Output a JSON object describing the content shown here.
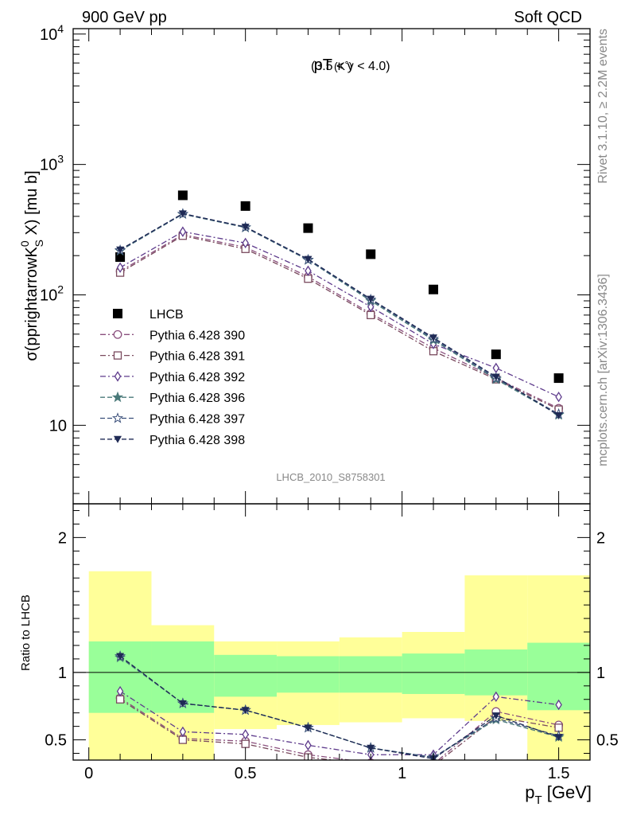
{
  "header": {
    "left": "900 GeV pp",
    "right": "Soft QCD",
    "side_top": "Rivet 3.1.10, ≥ 2.2M events",
    "side_bottom": "mcplots.cern.ch [arXiv:1306.3436]"
  },
  "chart_data": [
    {
      "type": "line",
      "panel": "main",
      "title_main": "pT",
      "title_particle": "(K˚)",
      "title_range": "(3.5 < y < 4.0)",
      "ylabel": "σ(pprightarrowK",
      "ylabel_sup": "0",
      "ylabel_sub": "S",
      "ylabel_tail": " X) [mu b]",
      "watermark": "LHCB_2010_S8758301",
      "yscale": "log",
      "ylim": [
        2.5,
        11000
      ],
      "xlim": [
        -0.05,
        1.6
      ],
      "x": [
        0.1,
        0.3,
        0.5,
        0.7,
        0.9,
        1.1,
        1.3,
        1.5
      ],
      "ytick_labels": [
        {
          "value": 10,
          "base": "10",
          "exp": ""
        },
        {
          "value": 100,
          "base": "10",
          "exp": "2"
        },
        {
          "value": 1000,
          "base": "10",
          "exp": "3"
        },
        {
          "value": 10000,
          "base": "10",
          "exp": "4"
        }
      ],
      "series": [
        {
          "name": "LHCB",
          "marker": "square",
          "color": "#000000",
          "values": [
            195,
            580,
            480,
            325,
            205,
            110,
            35,
            23
          ]
        },
        {
          "name": "Pythia 6.428 390",
          "marker": "circle",
          "color": "#8a4f7d",
          "line": "dashdot",
          "values": [
            152,
            290,
            232,
            138,
            72,
            39,
            23,
            13.5
          ]
        },
        {
          "name": "Pythia 6.428 391",
          "marker": "square-open",
          "color": "#7a4a5e",
          "line": "dashdot",
          "values": [
            148,
            284,
            225,
            133,
            70,
            37,
            22.5,
            13.2
          ]
        },
        {
          "name": "Pythia 6.428 392",
          "marker": "diamond",
          "color": "#5e3b8c",
          "line": "dashdot",
          "values": [
            162,
            305,
            250,
            153,
            81,
            42,
            27.5,
            16.5
          ]
        },
        {
          "name": "Pythia 6.428 396",
          "marker": "star",
          "color": "#4a7a7a",
          "line": "dashed",
          "values": [
            218,
            416,
            328,
            185,
            90,
            45,
            22.5,
            12.0
          ]
        },
        {
          "name": "Pythia 6.428 397",
          "marker": "star-open",
          "color": "#3a4f7a",
          "line": "dashed",
          "values": [
            220,
            418,
            330,
            186,
            92,
            46,
            23,
            12.2
          ]
        },
        {
          "name": "Pythia 6.428 398",
          "marker": "triangle-down",
          "color": "#1f2a55",
          "line": "dashed",
          "values": [
            222,
            420,
            332,
            188,
            93,
            47,
            23.5,
            11.9
          ]
        }
      ]
    },
    {
      "type": "line",
      "panel": "ratio",
      "ylabel": "Ratio to LHCB",
      "xlabel": "p",
      "xlabel_sub": "T",
      "xlabel_tail": " [GeV]",
      "ylim": [
        0.35,
        2.25
      ],
      "xlim": [
        -0.05,
        1.6
      ],
      "xtick_labels": [
        {
          "value": 0,
          "label": "0"
        },
        {
          "value": 0.5,
          "label": "0.5"
        },
        {
          "value": 1,
          "label": "1"
        },
        {
          "value": 1.5,
          "label": "1.5"
        }
      ],
      "ytick_labels": [
        {
          "value": 0.5,
          "label": "0.5"
        },
        {
          "value": 1,
          "label": "1"
        },
        {
          "value": 2,
          "label": "2"
        }
      ],
      "bands": {
        "x_edges": [
          0.0,
          0.2,
          0.4,
          0.6,
          0.8,
          1.0,
          1.2,
          1.4,
          1.6
        ],
        "yellow_low": [
          0.35,
          0.35,
          0.58,
          0.61,
          0.63,
          0.66,
          0.64,
          0.35,
          0.35
        ],
        "yellow_high": [
          1.75,
          1.35,
          1.23,
          1.23,
          1.26,
          1.3,
          1.72,
          1.72,
          1.72
        ],
        "green_low": [
          0.7,
          0.7,
          0.82,
          0.85,
          0.85,
          0.84,
          0.83,
          0.72,
          0.72
        ],
        "green_high": [
          1.23,
          1.23,
          1.13,
          1.12,
          1.12,
          1.14,
          1.17,
          1.22,
          1.22
        ]
      },
      "series": [
        {
          "name": "Pythia 6.428 390",
          "values": [
            0.81,
            0.51,
            0.49,
            0.39,
            0.33,
            0.32,
            0.71,
            0.61
          ]
        },
        {
          "name": "Pythia 6.428 391",
          "values": [
            0.8,
            0.5,
            0.47,
            0.37,
            0.32,
            0.31,
            0.67,
            0.59
          ]
        },
        {
          "name": "Pythia 6.428 392",
          "values": [
            0.86,
            0.56,
            0.54,
            0.46,
            0.39,
            0.39,
            0.82,
            0.76
          ]
        },
        {
          "name": "Pythia 6.428 396",
          "values": [
            1.11,
            0.77,
            0.72,
            0.59,
            0.44,
            0.37,
            0.65,
            0.52
          ]
        },
        {
          "name": "Pythia 6.428 397",
          "values": [
            1.12,
            0.77,
            0.72,
            0.59,
            0.44,
            0.37,
            0.66,
            0.53
          ]
        },
        {
          "name": "Pythia 6.428 398",
          "values": [
            1.12,
            0.77,
            0.72,
            0.59,
            0.44,
            0.36,
            0.68,
            0.52
          ]
        }
      ]
    }
  ]
}
